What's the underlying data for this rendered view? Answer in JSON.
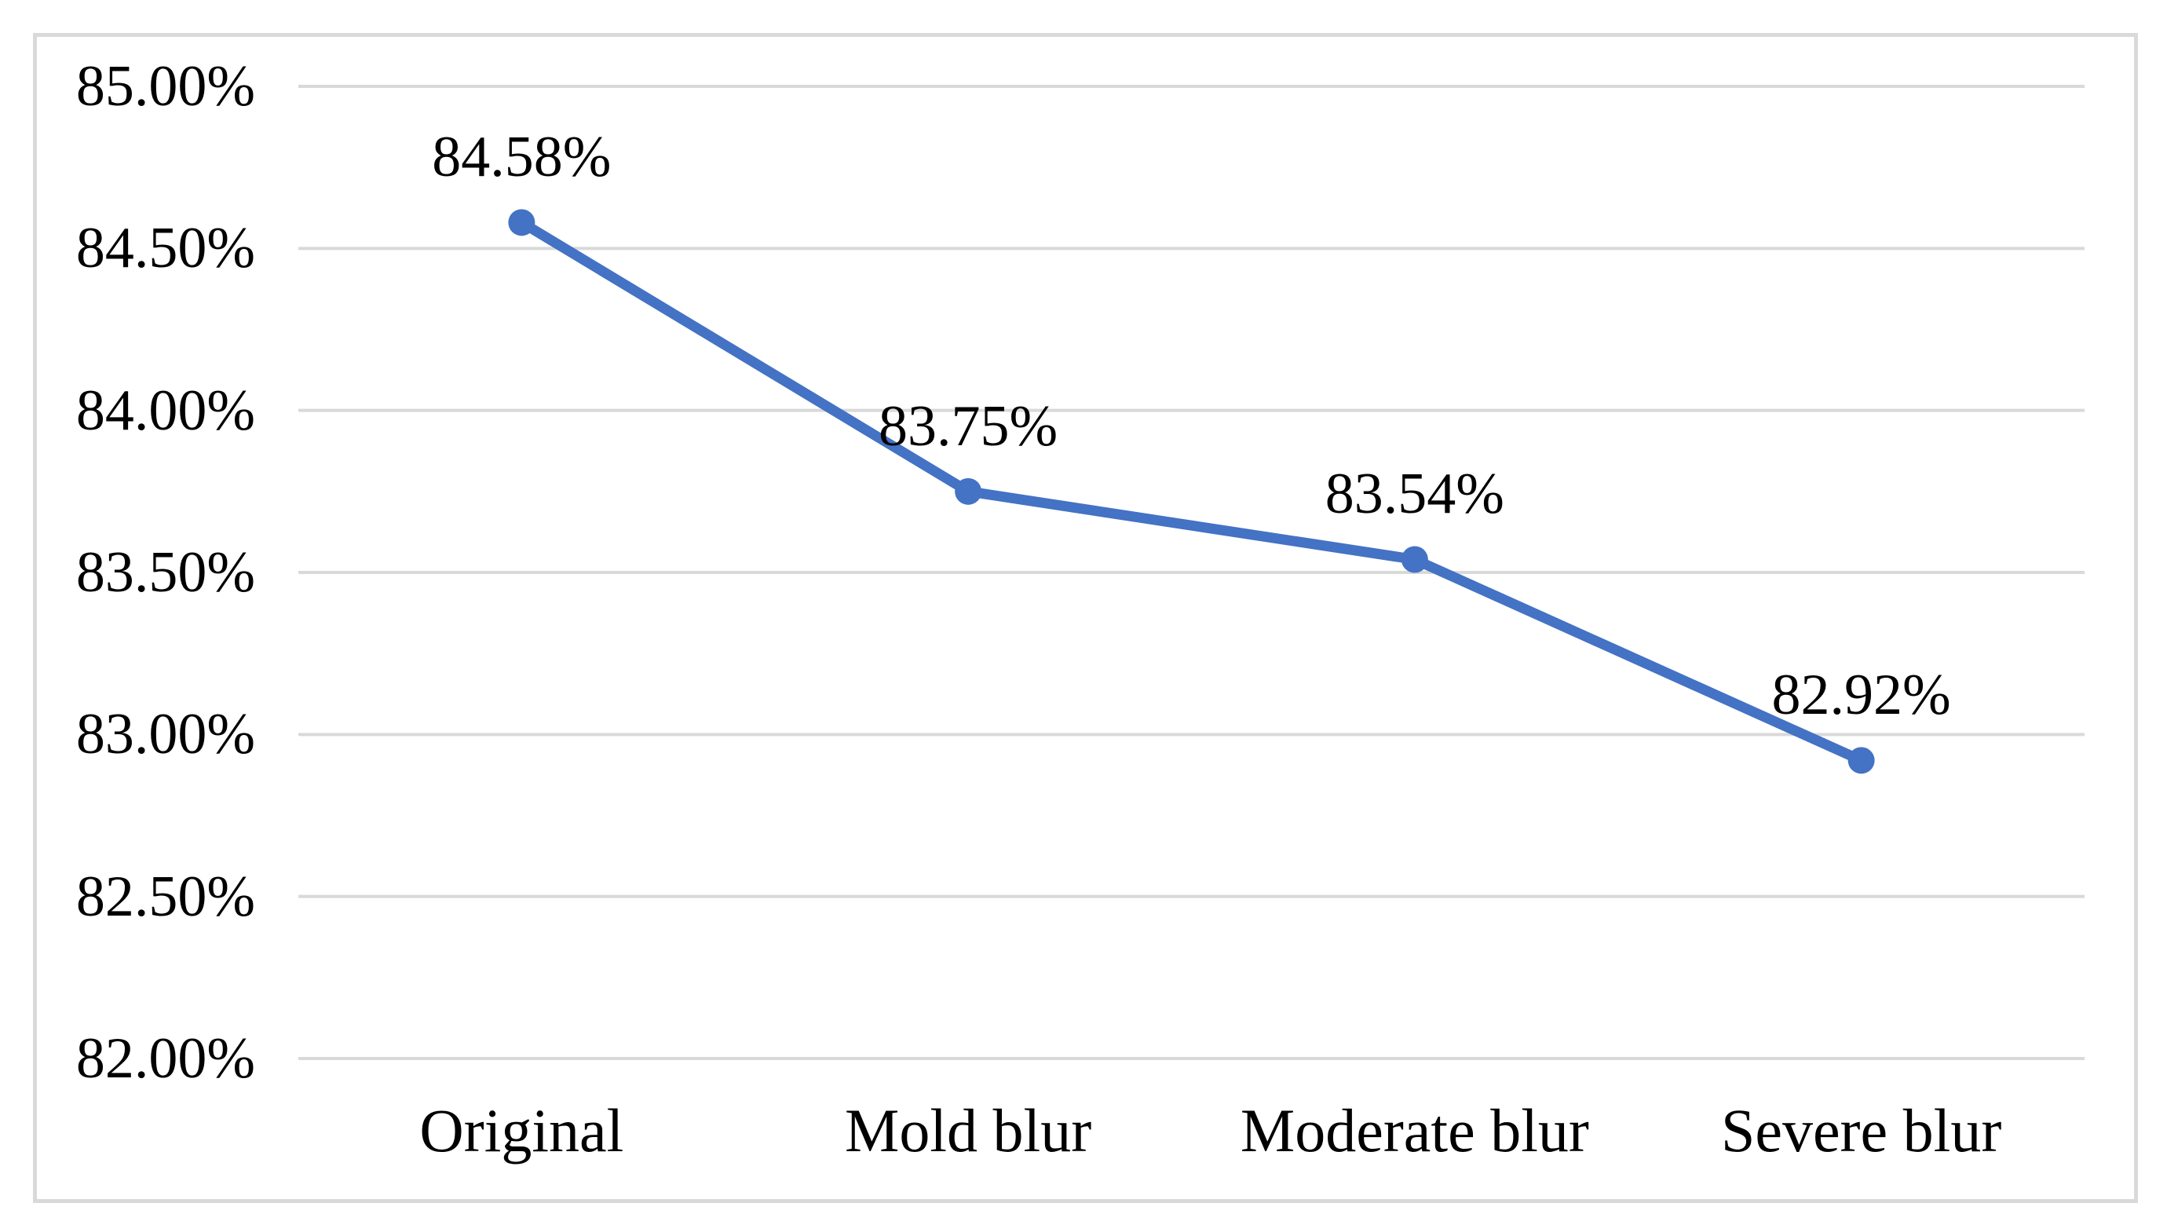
{
  "chart_data": {
    "type": "line",
    "title": "",
    "xlabel": "",
    "ylabel": "",
    "categories": [
      "Original",
      "Mold blur",
      "Moderate blur",
      "Severe blur"
    ],
    "values": [
      84.58,
      83.75,
      83.54,
      82.92
    ],
    "point_labels": [
      "84.58%",
      "83.75%",
      "83.54%",
      "82.92%"
    ],
    "y_ticks": [
      85.0,
      84.5,
      84.0,
      83.5,
      83.0,
      82.5,
      82.0
    ],
    "y_tick_labels": [
      "85.00%",
      "84.50%",
      "84.00%",
      "83.50%",
      "83.00%",
      "82.50%",
      "82.00%"
    ],
    "ylim": [
      82.0,
      85.0
    ],
    "grid": "horizontal",
    "legend": "none",
    "colors": {
      "line": "#4472C4",
      "marker": "#4472C4",
      "gridline": "#D9D9D9",
      "frame_border": "#D9D9D9",
      "text": "#000000",
      "background": "#FFFFFF"
    }
  }
}
